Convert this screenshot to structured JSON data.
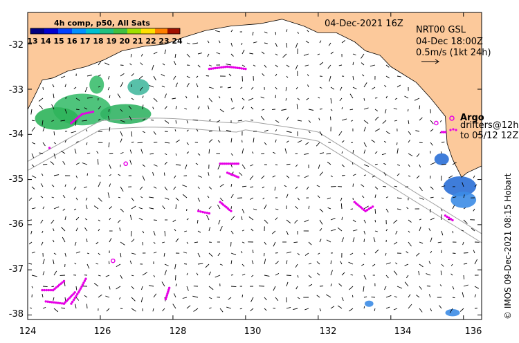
{
  "map": {
    "title": "04-Dec-2021 16Z",
    "product": "NRT00 GSL",
    "time": "04-Dec 18:00Z",
    "scale": "0.5m/s (1kt 24h)",
    "argo_label": "Argo",
    "drifters_line1": "drifters@12h",
    "drifters_line2": "to 05/12 12Z",
    "credit": "© IMOS 09-Dec-2021 08:15 Hobart",
    "lon_ticks": [
      124,
      126,
      128,
      130,
      132,
      134,
      136
    ],
    "lat_ticks": [
      -32,
      -33,
      -34,
      -35,
      -36,
      -37,
      -38
    ],
    "lon_range": [
      124,
      136.5
    ],
    "lat_range": [
      -38.1,
      -31.3
    ],
    "colors": {
      "land": "#fcc99b",
      "sea": "#ffffff",
      "drifter": "#e600e6",
      "bathymetry": "#a0a0a0"
    }
  },
  "sst_legend": {
    "title": "4h comp, p50, All Sats",
    "ticks": [
      "13",
      "14",
      "15",
      "16",
      "17",
      "18",
      "19",
      "20",
      "21",
      "22",
      "23",
      "24"
    ]
  },
  "coastline": [
    [
      124.0,
      -33.45
    ],
    [
      124.25,
      -33.05
    ],
    [
      124.4,
      -32.8
    ],
    [
      124.7,
      -32.75
    ],
    [
      125.1,
      -32.6
    ],
    [
      125.6,
      -32.5
    ],
    [
      126.1,
      -32.35
    ],
    [
      126.6,
      -32.15
    ],
    [
      127.2,
      -32.05
    ],
    [
      127.8,
      -32.0
    ],
    [
      128.3,
      -31.85
    ],
    [
      128.9,
      -31.7
    ],
    [
      129.6,
      -31.6
    ],
    [
      130.4,
      -31.55
    ],
    [
      131.0,
      -31.45
    ],
    [
      131.6,
      -31.6
    ],
    [
      132.0,
      -31.75
    ],
    [
      132.5,
      -31.75
    ],
    [
      133.0,
      -31.95
    ],
    [
      133.3,
      -32.15
    ],
    [
      133.7,
      -32.25
    ],
    [
      134.0,
      -32.5
    ],
    [
      134.3,
      -32.65
    ],
    [
      134.7,
      -32.85
    ],
    [
      135.1,
      -33.2
    ],
    [
      135.5,
      -33.6
    ],
    [
      135.55,
      -34.2
    ],
    [
      135.7,
      -34.55
    ],
    [
      135.95,
      -34.95
    ],
    [
      136.1,
      -34.85
    ],
    [
      136.5,
      -34.7
    ]
  ],
  "sst_patches": [
    {
      "lon": 125.5,
      "lat": -33.45,
      "rlon": 0.8,
      "rlat": 0.35,
      "color": "#3cbe6e"
    },
    {
      "lon": 124.8,
      "lat": -33.65,
      "rlon": 0.6,
      "rlat": 0.25,
      "color": "#2eb45a"
    },
    {
      "lon": 126.7,
      "lat": -33.55,
      "rlon": 0.7,
      "rlat": 0.22,
      "color": "#32b464"
    },
    {
      "lon": 127.05,
      "lat": -32.95,
      "rlon": 0.3,
      "rlat": 0.18,
      "color": "#46b9a0"
    },
    {
      "lon": 125.9,
      "lat": -32.9,
      "rlon": 0.2,
      "rlat": 0.2,
      "color": "#3cbe6e"
    },
    {
      "lon": 135.9,
      "lat": -35.15,
      "rlon": 0.45,
      "rlat": 0.22,
      "color": "#2a6fd6"
    },
    {
      "lon": 136.0,
      "lat": -35.45,
      "rlon": 0.35,
      "rlat": 0.18,
      "color": "#3c8ce6"
    },
    {
      "lon": 135.4,
      "lat": -34.55,
      "rlon": 0.2,
      "rlat": 0.13,
      "color": "#2a6fd6"
    },
    {
      "lon": 133.4,
      "lat": -37.75,
      "rlon": 0.12,
      "rlat": 0.07,
      "color": "#3c8ce6"
    },
    {
      "lon": 135.7,
      "lat": -37.95,
      "rlon": 0.2,
      "rlat": 0.08,
      "color": "#3c8ce6"
    }
  ],
  "drifter_tracks": [
    [
      [
        129.0,
        -32.55
      ],
      [
        129.5,
        -32.5
      ],
      [
        130.0,
        -32.55
      ]
    ],
    [
      [
        125.2,
        -33.75
      ],
      [
        125.5,
        -33.55
      ],
      [
        125.8,
        -33.5
      ]
    ],
    [
      [
        124.6,
        -34.3
      ]
    ],
    [
      [
        129.3,
        -34.65
      ],
      [
        129.8,
        -34.65
      ]
    ],
    [
      [
        129.5,
        -34.85
      ],
      [
        129.8,
        -34.95
      ]
    ],
    [
      [
        129.3,
        -35.5
      ],
      [
        129.6,
        -35.7
      ]
    ],
    [
      [
        128.7,
        -35.7
      ],
      [
        129.0,
        -35.75
      ]
    ],
    [
      [
        133.0,
        -35.5
      ],
      [
        133.3,
        -35.7
      ],
      [
        133.5,
        -35.6
      ]
    ],
    [
      [
        135.5,
        -35.8
      ],
      [
        135.7,
        -35.9
      ]
    ],
    [
      [
        124.4,
        -37.45
      ],
      [
        124.7,
        -37.45
      ],
      [
        125.0,
        -37.25
      ]
    ],
    [
      [
        124.5,
        -37.7
      ],
      [
        125.0,
        -37.75
      ],
      [
        125.3,
        -37.5
      ]
    ],
    [
      [
        125.2,
        -37.75
      ],
      [
        125.4,
        -37.5
      ],
      [
        125.6,
        -37.2
      ]
    ],
    [
      [
        127.8,
        -37.65
      ],
      [
        127.9,
        -37.4
      ]
    ],
    [
      [
        135.4,
        -33.95
      ],
      [
        135.5,
        -33.95
      ]
    ]
  ],
  "argo_floats": [
    [
      126.7,
      -34.65
    ],
    [
      126.35,
      -36.8
    ],
    [
      135.25,
      -33.75
    ]
  ]
}
